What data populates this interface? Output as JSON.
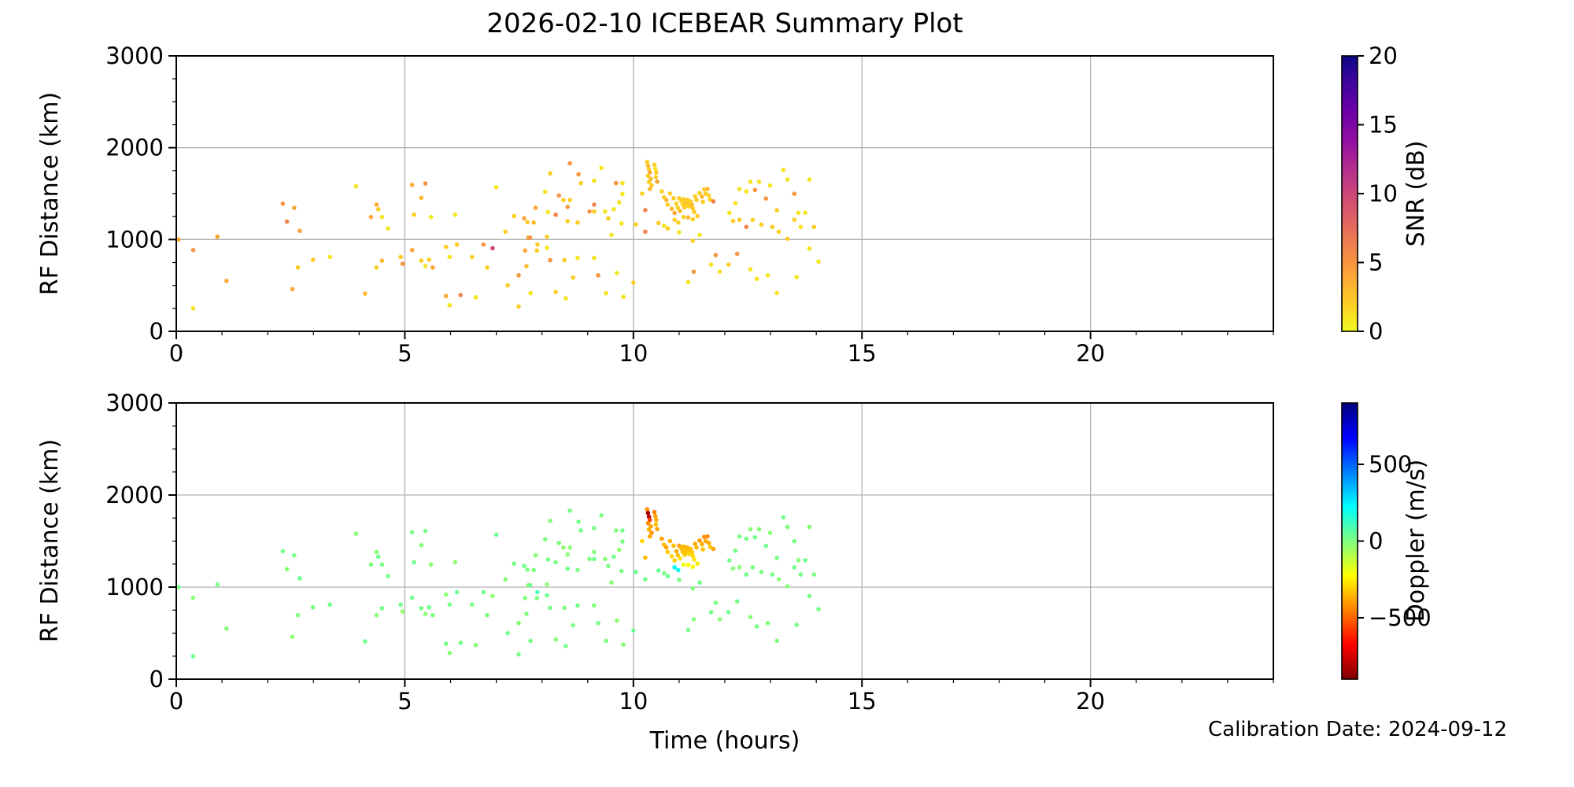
{
  "figure": {
    "title": "2026-02-10 ICEBEAR Summary Plot",
    "calibration_note": "Calibration Date: 2024-09-12",
    "background": "#ffffff",
    "grid_color": "#b0b0b0",
    "spine_color": "#000000"
  },
  "chart_data": {
    "type": "scatter",
    "title": "2026-02-10 ICEBEAR Summary Plot",
    "xlabel": "Time (hours)",
    "ylabel": "RF Distance (km)",
    "x_axis": {
      "range": [
        0,
        24
      ],
      "ticks": [
        0,
        5,
        10,
        15,
        20
      ],
      "minor_step": 1
    },
    "y_axis": {
      "range": [
        0,
        3000
      ],
      "ticks": [
        0,
        1000,
        2000,
        3000
      ],
      "minor_step": 250
    },
    "grid": true,
    "legend_position": "none",
    "annotation": "Calibration Date: 2024-09-12",
    "columns": [
      "time_hours",
      "rf_distance_km",
      "snr_db",
      "doppler_m_s"
    ],
    "subplots": [
      {
        "name": "snr-subplot",
        "color_by": "snr_db",
        "colorbar": {
          "label": "SNR (dB)",
          "range": [
            0,
            20
          ],
          "ticks": [
            20,
            15,
            10,
            5,
            0
          ],
          "colormap": "plasma_reversed"
        }
      },
      {
        "name": "doppler-subplot",
        "color_by": "doppler_m_s",
        "colorbar": {
          "label": "Doppler (m/s)",
          "range": [
            -900,
            900
          ],
          "ticks": [
            500,
            0,
            -500
          ],
          "colormap": "jet_reversed"
        }
      }
    ],
    "points": [
      [
        0.05,
        1000,
        4,
        10
      ],
      [
        0.37,
        885,
        5,
        -15
      ],
      [
        0.37,
        250,
        1,
        25
      ],
      [
        0.9,
        1030,
        4,
        15
      ],
      [
        1.1,
        550,
        4,
        -10
      ],
      [
        2.33,
        1390,
        5,
        20
      ],
      [
        2.42,
        1195,
        6,
        -20
      ],
      [
        2.54,
        460,
        4,
        -25
      ],
      [
        2.58,
        1345,
        4,
        10
      ],
      [
        2.66,
        695,
        2,
        0
      ],
      [
        2.7,
        1095,
        4,
        30
      ],
      [
        2.99,
        780,
        2,
        15
      ],
      [
        3.36,
        810,
        1,
        20
      ],
      [
        3.93,
        1580,
        1,
        -10
      ],
      [
        4.13,
        410,
        3,
        25
      ],
      [
        4.26,
        1245,
        4,
        5
      ],
      [
        4.38,
        1380,
        4,
        -20
      ],
      [
        4.42,
        1330,
        2,
        30
      ],
      [
        4.5,
        1245,
        1,
        10
      ],
      [
        4.38,
        695,
        2,
        -15
      ],
      [
        4.5,
        770,
        3,
        20
      ],
      [
        4.63,
        1120,
        1,
        0
      ],
      [
        4.91,
        810,
        2,
        25
      ],
      [
        4.95,
        735,
        5,
        -30
      ],
      [
        5.16,
        1595,
        4,
        15
      ],
      [
        5.2,
        1270,
        2,
        20
      ],
      [
        5.36,
        1455,
        3,
        -10
      ],
      [
        5.45,
        1610,
        5,
        5
      ],
      [
        5.57,
        1245,
        1,
        -20
      ],
      [
        5.16,
        885,
        4,
        25
      ],
      [
        5.36,
        770,
        2,
        10
      ],
      [
        5.45,
        710,
        1,
        -15
      ],
      [
        5.53,
        780,
        2,
        30
      ],
      [
        5.61,
        695,
        4,
        0
      ],
      [
        5.9,
        920,
        2,
        -25
      ],
      [
        5.98,
        810,
        1,
        15
      ],
      [
        5.9,
        385,
        4,
        20
      ],
      [
        5.98,
        285,
        1,
        -10
      ],
      [
        6.1,
        1270,
        1,
        -20
      ],
      [
        6.14,
        945,
        2,
        25
      ],
      [
        6.22,
        395,
        6,
        10
      ],
      [
        6.47,
        810,
        2,
        5
      ],
      [
        6.55,
        370,
        1,
        -15
      ],
      [
        6.72,
        945,
        5,
        20
      ],
      [
        6.8,
        695,
        2,
        10
      ],
      [
        6.92,
        905,
        10,
        -30
      ],
      [
        7.0,
        1570,
        1,
        30
      ],
      [
        7.2,
        1085,
        2,
        -10
      ],
      [
        7.25,
        500,
        2,
        25
      ],
      [
        7.39,
        1255,
        2,
        15
      ],
      [
        7.49,
        610,
        5,
        -20
      ],
      [
        7.49,
        270,
        2,
        15
      ],
      [
        7.61,
        1230,
        4,
        20
      ],
      [
        7.63,
        880,
        4,
        0
      ],
      [
        7.66,
        710,
        3,
        -10
      ],
      [
        7.68,
        1190,
        2,
        5
      ],
      [
        7.7,
        1020,
        4,
        -25
      ],
      [
        7.74,
        1020,
        5,
        30
      ],
      [
        7.75,
        415,
        1,
        20
      ],
      [
        7.82,
        1185,
        3,
        5
      ],
      [
        7.86,
        1345,
        4,
        -15
      ],
      [
        7.89,
        880,
        2,
        15
      ],
      [
        7.9,
        945,
        2,
        90
      ],
      [
        8.07,
        1520,
        1,
        10
      ],
      [
        8.11,
        1030,
        2,
        -20
      ],
      [
        8.11,
        910,
        1,
        25
      ],
      [
        8.13,
        1300,
        1,
        10
      ],
      [
        8.18,
        1720,
        2,
        -10
      ],
      [
        8.18,
        775,
        5,
        20
      ],
      [
        8.3,
        1270,
        6,
        15
      ],
      [
        8.3,
        430,
        2,
        -15
      ],
      [
        8.37,
        1480,
        5,
        0
      ],
      [
        8.47,
        1430,
        2,
        -25
      ],
      [
        8.49,
        775,
        2,
        -10
      ],
      [
        8.52,
        360,
        1,
        15
      ],
      [
        8.56,
        1355,
        5,
        -20
      ],
      [
        8.56,
        1200,
        2,
        20
      ],
      [
        8.61,
        1430,
        2,
        -15
      ],
      [
        8.61,
        1830,
        5,
        10
      ],
      [
        8.68,
        585,
        2,
        10
      ],
      [
        8.78,
        1185,
        2,
        5
      ],
      [
        8.78,
        800,
        1,
        25
      ],
      [
        8.8,
        1710,
        5,
        20
      ],
      [
        8.85,
        1615,
        2,
        25
      ],
      [
        9.04,
        1305,
        5,
        15
      ],
      [
        9.14,
        1380,
        6,
        -10
      ],
      [
        9.14,
        1305,
        2,
        30
      ],
      [
        9.14,
        1640,
        1,
        15
      ],
      [
        9.14,
        800,
        1,
        0
      ],
      [
        9.23,
        610,
        5,
        20
      ],
      [
        9.3,
        1780,
        1,
        10
      ],
      [
        9.38,
        1305,
        1,
        -15
      ],
      [
        9.4,
        415,
        1,
        5
      ],
      [
        9.45,
        1230,
        2,
        10
      ],
      [
        9.52,
        1050,
        1,
        -20
      ],
      [
        9.57,
        1330,
        1,
        20
      ],
      [
        9.62,
        1615,
        5,
        -10
      ],
      [
        9.64,
        635,
        1,
        -25
      ],
      [
        9.69,
        1405,
        1,
        -25
      ],
      [
        9.74,
        1175,
        1,
        15
      ],
      [
        9.76,
        1495,
        1,
        5
      ],
      [
        9.76,
        1615,
        1,
        25
      ],
      [
        9.78,
        375,
        1,
        -10
      ],
      [
        10.0,
        530,
        2,
        20
      ],
      [
        10.05,
        1165,
        2,
        40
      ],
      [
        10.19,
        1500,
        2,
        -300
      ],
      [
        10.26,
        1320,
        6,
        -350
      ],
      [
        10.26,
        1085,
        6,
        25
      ],
      [
        10.3,
        1845,
        2,
        -420
      ],
      [
        10.32,
        1805,
        3,
        -840
      ],
      [
        10.34,
        1765,
        2,
        -790
      ],
      [
        10.36,
        1730,
        4,
        -560
      ],
      [
        10.32,
        1695,
        2,
        -430
      ],
      [
        10.38,
        1660,
        3,
        -390
      ],
      [
        10.34,
        1625,
        2,
        -360
      ],
      [
        10.4,
        1590,
        2,
        -410
      ],
      [
        10.36,
        1550,
        3,
        -380
      ],
      [
        10.46,
        1815,
        2,
        -450
      ],
      [
        10.48,
        1770,
        1,
        -400
      ],
      [
        10.5,
        1730,
        2,
        -370
      ],
      [
        10.49,
        1680,
        2,
        -340
      ],
      [
        10.52,
        1630,
        4,
        -390
      ],
      [
        10.62,
        1525,
        2,
        -390
      ],
      [
        10.67,
        1460,
        2,
        -350
      ],
      [
        10.72,
        1430,
        3,
        -380
      ],
      [
        10.75,
        1380,
        2,
        -320
      ],
      [
        10.8,
        1500,
        2,
        -360
      ],
      [
        10.84,
        1335,
        3,
        -300
      ],
      [
        10.88,
        1450,
        2,
        -340
      ],
      [
        10.9,
        1290,
        4,
        -310
      ],
      [
        10.94,
        1390,
        2,
        -370
      ],
      [
        10.97,
        1345,
        2,
        -330
      ],
      [
        11.0,
        1450,
        2,
        -390
      ],
      [
        11.02,
        1310,
        3,
        -280
      ],
      [
        11.05,
        1420,
        2,
        -350
      ],
      [
        11.08,
        1380,
        2,
        -330
      ],
      [
        11.1,
        1440,
        2,
        -360
      ],
      [
        11.12,
        1350,
        2,
        -310
      ],
      [
        11.14,
        1400,
        3,
        -340
      ],
      [
        11.16,
        1370,
        2,
        -325
      ],
      [
        11.18,
        1430,
        2,
        -355
      ],
      [
        11.2,
        1395,
        2,
        -335
      ],
      [
        11.22,
        1360,
        2,
        -300
      ],
      [
        11.25,
        1415,
        2,
        -345
      ],
      [
        11.28,
        1380,
        3,
        -320
      ],
      [
        11.3,
        1340,
        2,
        -290
      ],
      [
        11.33,
        1300,
        2,
        -270
      ],
      [
        11.35,
        1470,
        2,
        -380
      ],
      [
        11.38,
        1430,
        2,
        -350
      ],
      [
        11.4,
        1255,
        2,
        -260
      ],
      [
        11.45,
        1505,
        2,
        -400
      ],
      [
        11.5,
        1465,
        3,
        -370
      ],
      [
        11.52,
        1410,
        2,
        -330
      ],
      [
        11.55,
        1545,
        2,
        -410
      ],
      [
        11.58,
        1500,
        2,
        -380
      ],
      [
        11.62,
        1550,
        3,
        -420
      ],
      [
        11.65,
        1480,
        2,
        -360
      ],
      [
        11.68,
        1435,
        2,
        -330
      ],
      [
        11.75,
        1415,
        6,
        -380
      ],
      [
        11.3,
        1220,
        2,
        -240
      ],
      [
        11.2,
        1240,
        3,
        -230
      ],
      [
        11.1,
        1245,
        2,
        -200
      ],
      [
        10.9,
        1215,
        2,
        230
      ],
      [
        10.98,
        1185,
        2,
        205
      ],
      [
        10.55,
        1180,
        2,
        40
      ],
      [
        10.67,
        1150,
        1,
        10
      ],
      [
        10.75,
        1120,
        2,
        30
      ],
      [
        11.0,
        1080,
        1,
        15
      ],
      [
        11.3,
        985,
        2,
        -5
      ],
      [
        11.45,
        1050,
        1,
        20
      ],
      [
        11.2,
        535,
        1,
        15
      ],
      [
        11.32,
        650,
        5,
        -10
      ],
      [
        11.7,
        727,
        1,
        20
      ],
      [
        11.8,
        830,
        5,
        5
      ],
      [
        11.89,
        650,
        1,
        -15
      ],
      [
        12.08,
        727,
        2,
        25
      ],
      [
        12.27,
        845,
        5,
        10
      ],
      [
        12.56,
        675,
        1,
        -20
      ],
      [
        12.7,
        572,
        1,
        15
      ],
      [
        12.94,
        610,
        1,
        0
      ],
      [
        13.14,
        417,
        1,
        -10
      ],
      [
        13.57,
        590,
        1,
        20
      ],
      [
        12.1,
        1290,
        1,
        10
      ],
      [
        12.18,
        1202,
        2,
        -15
      ],
      [
        12.23,
        1395,
        1,
        20
      ],
      [
        12.32,
        1550,
        1,
        5
      ],
      [
        12.32,
        1215,
        2,
        -20
      ],
      [
        12.47,
        1525,
        1,
        15
      ],
      [
        12.47,
        1137,
        6,
        25
      ],
      [
        12.56,
        1628,
        1,
        -10
      ],
      [
        12.61,
        1215,
        2,
        10
      ],
      [
        12.66,
        1540,
        5,
        20
      ],
      [
        12.75,
        1628,
        1,
        -15
      ],
      [
        12.8,
        1163,
        2,
        5
      ],
      [
        12.9,
        1447,
        5,
        25
      ],
      [
        12.99,
        1589,
        1,
        -20
      ],
      [
        13.04,
        1137,
        2,
        10
      ],
      [
        13.14,
        1318,
        2,
        15
      ],
      [
        13.18,
        1085,
        2,
        -10
      ],
      [
        13.28,
        1757,
        1,
        20
      ],
      [
        13.37,
        1654,
        1,
        0
      ],
      [
        13.37,
        1008,
        2,
        -15
      ],
      [
        13.52,
        1499,
        5,
        10
      ],
      [
        13.52,
        1215,
        2,
        25
      ],
      [
        13.61,
        1292,
        1,
        -10
      ],
      [
        13.66,
        1137,
        1,
        15
      ],
      [
        13.76,
        1292,
        1,
        20
      ],
      [
        13.85,
        1654,
        1,
        -15
      ],
      [
        13.85,
        902,
        1,
        10
      ],
      [
        13.95,
        1137,
        2,
        5
      ],
      [
        14.05,
        760,
        1,
        20
      ]
    ]
  }
}
